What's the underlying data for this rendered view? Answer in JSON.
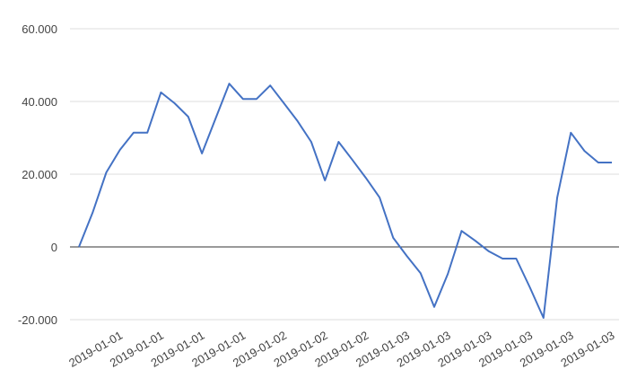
{
  "chart_data": {
    "type": "line",
    "categories": [
      null,
      null,
      null,
      "2019-01-01",
      null,
      null,
      "2019-01-01",
      null,
      null,
      "2019-01-01",
      null,
      null,
      "2019-01-01",
      null,
      null,
      "2019-01-02",
      null,
      null,
      "2019-01-02",
      null,
      null,
      "2019-01-02",
      null,
      null,
      "2019-01-03",
      null,
      null,
      "2019-01-03",
      null,
      null,
      "2019-01-03",
      null,
      null,
      "2019-01-03",
      null,
      null,
      "2019-01-03",
      null,
      null,
      "2019-01-03"
    ],
    "series": [
      {
        "color": "#4472c4",
        "values": [
          0,
          9400,
          20500,
          26700,
          31400,
          31400,
          42500,
          39500,
          35800,
          25700,
          35300,
          44900,
          40700,
          40700,
          44400,
          39500,
          34600,
          28900,
          18300,
          28900,
          24000,
          19000,
          13600,
          2500,
          -2500,
          -7200,
          -16500,
          -7400,
          4400,
          1700,
          -1200,
          -3200,
          -3200,
          -11100,
          -19500,
          13600,
          31400,
          26400,
          23200,
          23200
        ]
      }
    ],
    "ylim": [
      -20000,
      60000
    ],
    "yticks": [
      {
        "value": -20000,
        "label": "-20.000"
      },
      0,
      {
        "value": 20000,
        "label": "20.000"
      },
      {
        "value": 40000,
        "label": "40.000"
      },
      {
        "value": 60000,
        "label": "60.000"
      }
    ],
    "grid": true
  }
}
